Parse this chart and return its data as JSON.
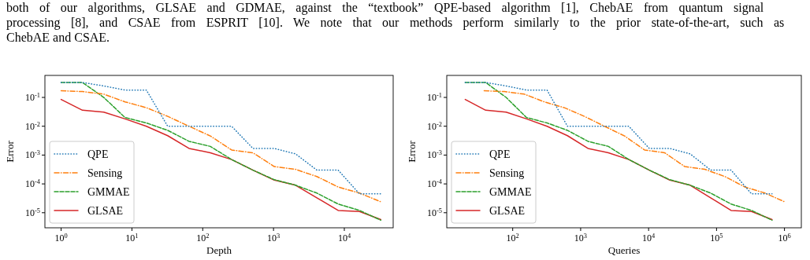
{
  "chart_data": [
    {
      "type": "line",
      "xlabel": "Depth",
      "ylabel": "Error",
      "log": "xy",
      "grid": false,
      "legend": "bottom left",
      "marker": "none",
      "annotations": [
        "both of our algorithms, GLSAE and GDMAE, against the “textbook” QPE-based algorithm [1], ChebAE from quantum signal",
        "processing [8], and CSAE from ESPRIT [10]. We note that our methods perform similarly to the prior state-of-the-art, such as",
        "ChebAE and CSAE."
      ],
      "xlim": [
        0.59,
        49000
      ],
      "xticks": [
        {
          "value": 1,
          "label": "10$^{0}$"
        },
        {
          "value": 10,
          "label": "10$^{1}$"
        },
        {
          "value": 100,
          "label": "10$^{2}$"
        },
        {
          "value": 1000,
          "label": "10$^{3}$"
        },
        {
          "value": 10000,
          "label": "10$^{4}$"
        }
      ],
      "ylim": [
        3e-06,
        0.58
      ],
      "yticks": [
        {
          "value": 1e-05,
          "label": "10$^{-5}$"
        },
        {
          "value": 0.0001,
          "label": "10$^{-4}$"
        },
        {
          "value": 0.001,
          "label": "10$^{-3}$"
        },
        {
          "value": 0.01,
          "label": "10$^{-2}$"
        },
        {
          "value": 0.1,
          "label": "10$^{-1}$"
        }
      ],
      "x": [
        1,
        2,
        4,
        8,
        16,
        32,
        64,
        128,
        256,
        512,
        1024,
        2048,
        4096,
        8192,
        16384,
        32768
      ],
      "series": [
        {
          "name": "QPE",
          "color": "#1f77b4",
          "line_style": "dotted",
          "values": [
            0.33,
            0.33,
            0.25,
            0.18,
            0.18,
            0.01,
            0.01,
            0.01,
            0.01,
            0.0017,
            0.0017,
            0.0011,
            0.0003,
            0.0003,
            4.5e-05,
            4.5e-05
          ]
        },
        {
          "name": "Sensing",
          "color": "#ff7f0e",
          "line_style": "dashdot",
          "values": [
            0.17,
            0.16,
            0.13,
            0.07,
            0.044,
            0.022,
            0.01,
            0.0046,
            0.0015,
            0.0012,
            0.0004,
            0.00032,
            0.00018,
            7.8e-05,
            4.8e-05,
            2.4e-05
          ]
        },
        {
          "name": "GMMAE",
          "color": "#2ca02c",
          "line_style": "dashed",
          "values": [
            0.33,
            0.33,
            0.1,
            0.02,
            0.013,
            0.0072,
            0.003,
            0.002,
            0.0007,
            0.0003,
            0.00014,
            9e-05,
            4.8e-05,
            2e-05,
            1.2e-05,
            5.5e-06
          ]
        },
        {
          "name": "GLSAE",
          "color": "#d62728",
          "line_style": "solid",
          "values": [
            0.085,
            0.036,
            0.031,
            0.018,
            0.01,
            0.0047,
            0.0017,
            0.0012,
            0.0007,
            0.0003,
            0.000135,
            9e-05,
            3.3e-05,
            1.2e-05,
            1.1e-05,
            5.8e-06
          ]
        }
      ]
    },
    {
      "type": "line",
      "xlabel": "Queries",
      "ylabel": "Error",
      "log": "xy",
      "grid": false,
      "legend": "bottom left",
      "marker": "none",
      "xlim": [
        10.7,
        1770000
      ],
      "xticks": [
        {
          "value": 100,
          "label": "10$^{2}$"
        },
        {
          "value": 1000,
          "label": "10$^{3}$"
        },
        {
          "value": 10000,
          "label": "10$^{4}$"
        },
        {
          "value": 100000,
          "label": "10$^{5}$"
        },
        {
          "value": 1000000,
          "label": "10$^{6}$"
        }
      ],
      "ylim": [
        3e-06,
        0.58
      ],
      "yticks": [
        {
          "value": 1e-05,
          "label": "10$^{-5}$"
        },
        {
          "value": 0.0001,
          "label": "10$^{-4}$"
        },
        {
          "value": 0.001,
          "label": "10$^{-3}$"
        },
        {
          "value": 0.01,
          "label": "10$^{-2}$"
        },
        {
          "value": 0.1,
          "label": "10$^{-1}$"
        }
      ],
      "x": [
        20,
        40,
        80,
        160,
        320,
        640,
        1280,
        2560,
        5120,
        10240,
        20480,
        40960,
        81920,
        163840,
        327680,
        655360
      ],
      "series": [
        {
          "name": "QPE",
          "color": "#1f77b4",
          "line_style": "dotted",
          "values": [
            0.33,
            0.33,
            0.25,
            0.18,
            0.18,
            0.01,
            0.01,
            0.01,
            0.01,
            0.0017,
            0.0017,
            0.0011,
            0.0003,
            0.0003,
            4.5e-05,
            4.5e-05
          ]
        },
        {
          "name": "Sensing",
          "color": "#ff7f0e",
          "line_style": "dashdot",
          "x": [
            38,
            75,
            148,
            292,
            576,
            1137,
            2244,
            4430,
            8740,
            17250,
            34050,
            67200,
            132600,
            261700,
            516500,
            1000000
          ],
          "values": [
            0.17,
            0.16,
            0.13,
            0.07,
            0.044,
            0.022,
            0.01,
            0.0046,
            0.0015,
            0.0012,
            0.0004,
            0.00032,
            0.00018,
            7.8e-05,
            4.8e-05,
            2.4e-05
          ]
        },
        {
          "name": "GMMAE",
          "color": "#2ca02c",
          "line_style": "dashed",
          "values": [
            0.33,
            0.33,
            0.1,
            0.02,
            0.013,
            0.0072,
            0.003,
            0.002,
            0.0007,
            0.0003,
            0.00014,
            9e-05,
            4.8e-05,
            2e-05,
            1.2e-05,
            5.5e-06
          ]
        },
        {
          "name": "GLSAE",
          "color": "#d62728",
          "line_style": "solid",
          "values": [
            0.085,
            0.036,
            0.031,
            0.018,
            0.01,
            0.0047,
            0.0017,
            0.0012,
            0.0007,
            0.0003,
            0.000135,
            9e-05,
            3.3e-05,
            1.2e-05,
            1.1e-05,
            5.8e-06
          ]
        }
      ]
    }
  ]
}
